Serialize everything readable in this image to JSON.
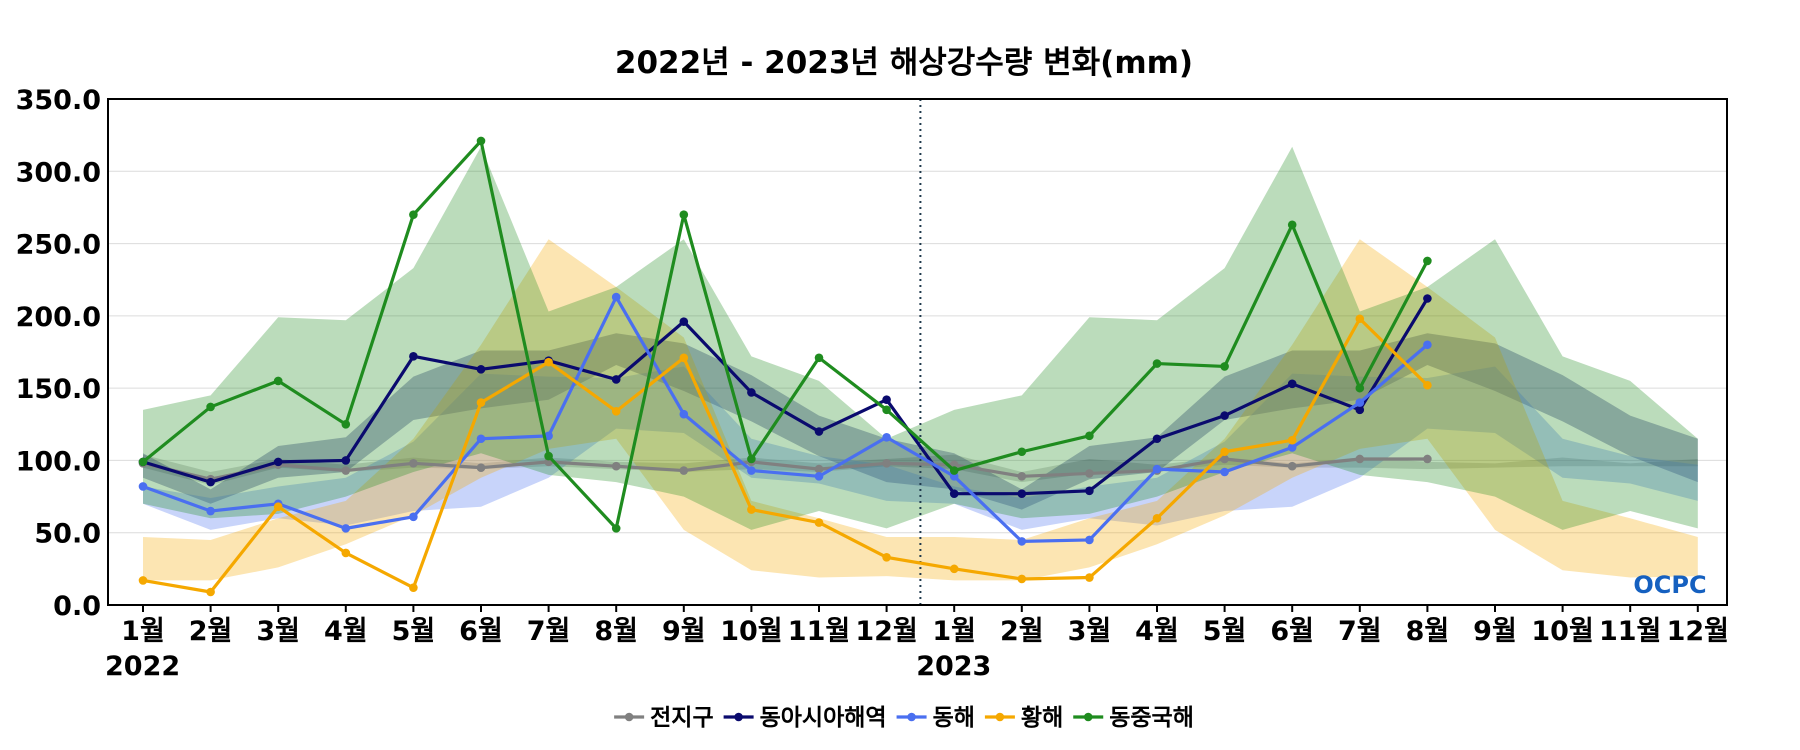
{
  "chart_data": {
    "type": "line",
    "title": "2022년 - 2023년 해상강수량 변화(mm)",
    "categories": [
      "1월",
      "2월",
      "3월",
      "4월",
      "5월",
      "6월",
      "7월",
      "8월",
      "9월",
      "10월",
      "11월",
      "12월",
      "1월",
      "2월",
      "3월",
      "4월",
      "5월",
      "6월",
      "7월",
      "8월",
      "9월",
      "10월",
      "11월",
      "12월"
    ],
    "year_labels": [
      {
        "label": "2022",
        "at_index": 0
      },
      {
        "label": "2023",
        "at_index": 12
      }
    ],
    "year_divider_after_index": 11,
    "y_ticks": [
      "0.0",
      "50.0",
      "100.0",
      "150.0",
      "200.0",
      "250.0",
      "300.0",
      "350.0"
    ],
    "ylim": [
      0,
      350
    ],
    "grid": "horizontal",
    "legend_position": "bottom-center",
    "logo_text": "OCPC",
    "series": [
      {
        "name": "전지구",
        "color": "#808080",
        "values": [
          98,
          87,
          97,
          93,
          98,
          95,
          99,
          96,
          93,
          99,
          94,
          98,
          97,
          89,
          91,
          93,
          101,
          96,
          101,
          101,
          null,
          null,
          null,
          null
        ],
        "band_low": [
          95,
          83,
          95,
          92,
          95,
          94,
          96,
          94,
          92,
          94,
          92,
          96,
          94,
          85,
          91,
          93,
          97,
          95,
          95,
          94,
          95,
          96,
          96,
          96
        ],
        "band_high": [
          104,
          92,
          101,
          97,
          102,
          98,
          102,
          99,
          98,
          102,
          98,
          101,
          104,
          92,
          101,
          97,
          102,
          98,
          102,
          99,
          98,
          102,
          98,
          101
        ]
      },
      {
        "name": "동아시아해역",
        "color": "#0a0a6e",
        "values": [
          99,
          85,
          99,
          100,
          172,
          163,
          169,
          156,
          196,
          147,
          120,
          142,
          77,
          77,
          79,
          115,
          131,
          153,
          135,
          212,
          null,
          null,
          null,
          null
        ],
        "band_low": [
          88,
          70,
          88,
          92,
          128,
          136,
          142,
          166,
          148,
          127,
          103,
          85,
          80,
          66,
          87,
          92,
          128,
          136,
          142,
          166,
          148,
          127,
          103,
          85
        ],
        "band_high": [
          105,
          80,
          110,
          116,
          158,
          176,
          176,
          188,
          181,
          159,
          131,
          115,
          105,
          80,
          110,
          116,
          158,
          176,
          176,
          188,
          181,
          159,
          131,
          115
        ]
      },
      {
        "name": "동해",
        "color": "#4a6ff0",
        "values": [
          82,
          65,
          70,
          53,
          61,
          115,
          117,
          213,
          132,
          93,
          89,
          116,
          89,
          44,
          45,
          94,
          92,
          109,
          140,
          180,
          null,
          null,
          null,
          null
        ],
        "band_low": [
          70,
          52,
          60,
          55,
          65,
          68,
          88,
          122,
          119,
          88,
          84,
          72,
          70,
          52,
          60,
          55,
          65,
          68,
          88,
          122,
          119,
          88,
          84,
          72
        ],
        "band_high": [
          82,
          74,
          82,
          88,
          113,
          160,
          158,
          157,
          165,
          115,
          103,
          97,
          82,
          74,
          82,
          88,
          113,
          160,
          158,
          157,
          165,
          115,
          103,
          97
        ]
      },
      {
        "name": "황해",
        "color": "#f5a800",
        "values": [
          17,
          9,
          68,
          36,
          12,
          140,
          168,
          134,
          171,
          66,
          57,
          33,
          25,
          18,
          19,
          60,
          106,
          114,
          198,
          152,
          null,
          null,
          null,
          null
        ],
        "band_low": [
          17,
          17,
          26,
          42,
          62,
          88,
          108,
          115,
          52,
          24,
          19,
          20,
          17,
          17,
          26,
          42,
          62,
          88,
          108,
          115,
          52,
          24,
          19,
          20
        ],
        "band_high": [
          47,
          45,
          60,
          72,
          115,
          180,
          253,
          220,
          185,
          72,
          60,
          47,
          47,
          45,
          60,
          72,
          115,
          180,
          253,
          220,
          185,
          72,
          60,
          47
        ]
      },
      {
        "name": "동중국해",
        "color": "#1f8c1f",
        "values": [
          99,
          137,
          155,
          125,
          270,
          321,
          103,
          53,
          270,
          101,
          171,
          135,
          93,
          106,
          117,
          167,
          165,
          263,
          150,
          238,
          null,
          null,
          null,
          null
        ],
        "band_low": [
          70,
          60,
          63,
          75,
          92,
          105,
          90,
          85,
          75,
          52,
          65,
          53,
          70,
          60,
          63,
          75,
          92,
          105,
          90,
          85,
          75,
          52,
          65,
          53
        ],
        "band_high": [
          135,
          145,
          199,
          197,
          233,
          317,
          203,
          220,
          253,
          172,
          155,
          115,
          135,
          145,
          199,
          197,
          233,
          317,
          203,
          220,
          253,
          172,
          155,
          115
        ]
      }
    ]
  }
}
